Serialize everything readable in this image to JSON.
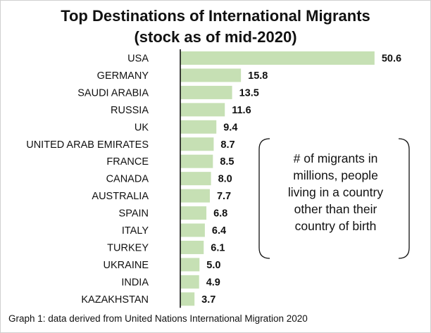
{
  "chart_data": {
    "type": "bar",
    "orientation": "horizontal",
    "title": "Top Destinations of International Migrants",
    "subtitle": "(stock as of mid-2020)",
    "categories": [
      "USA",
      "GERMANY",
      "SAUDI ARABIA",
      "RUSSIA",
      "UK",
      "UNITED ARAB EMIRATES",
      "FRANCE",
      "CANADA",
      "AUSTRALIA",
      "SPAIN",
      "ITALY",
      "TURKEY",
      "UKRAINE",
      "INDIA",
      "KAZAKHSTAN"
    ],
    "values": [
      50.6,
      15.8,
      13.5,
      11.6,
      9.4,
      8.7,
      8.5,
      8.0,
      7.7,
      6.8,
      6.4,
      6.1,
      5.0,
      4.9,
      3.7
    ],
    "value_labels": [
      "50.6",
      "15.8",
      "13.5",
      "11.6",
      "9.4",
      "8.7",
      "8.5",
      "8.0",
      "7.7",
      "6.8",
      "6.4",
      "6.1",
      "5.0",
      "4.9",
      "3.7"
    ],
    "xlim": [
      0,
      51
    ],
    "xlabel": "",
    "ylabel": "",
    "grid": false,
    "bar_color": "#c6e0b4",
    "axis_color": "#000000",
    "annotation_lines": [
      "# of migrants in",
      "millions, people",
      "living in a country",
      "other than their",
      "country of birth"
    ],
    "caption": "Graph 1: data derived from United Nations International Migration 2020"
  }
}
